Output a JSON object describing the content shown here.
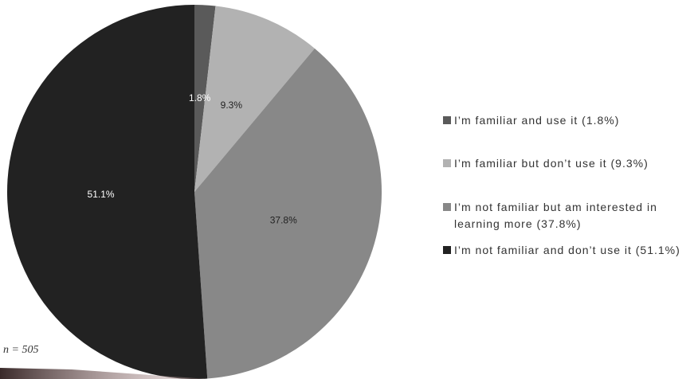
{
  "chart_data": {
    "type": "pie",
    "categories": [
      "I’m familiar and use it (1.8%)",
      "I’m familiar but don’t use it (9.3%)",
      "I’m not familiar but am interested in learning more (37.8%)",
      "I’m not familiar and don’t use it (51.1%)"
    ],
    "values": [
      1.8,
      9.3,
      37.8,
      51.1
    ],
    "value_labels": [
      "1.8%",
      "9.3%",
      "37.8%",
      "51.1%"
    ],
    "colors": [
      "#5a5a5a",
      "#b2b2b2",
      "#888888",
      "#222222"
    ],
    "label_colors": [
      "#ffffff",
      "#222222",
      "#222222",
      "#ffffff"
    ],
    "annotation": "n = 505"
  }
}
